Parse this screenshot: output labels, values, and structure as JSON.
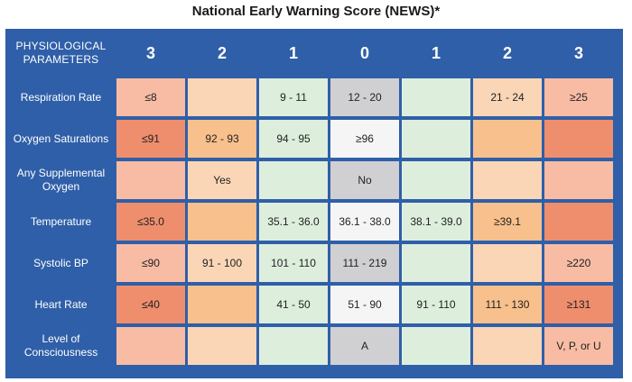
{
  "title": "National Early Warning Score (NEWS)*",
  "header": {
    "param_label": "PHYSIOLOGICAL PARAMETERS",
    "scores": [
      "3",
      "2",
      "1",
      "0",
      "1",
      "2",
      "3"
    ]
  },
  "colors": {
    "header_blue": "#2f5fa8",
    "score3_red": "#ef8e6d",
    "score3_salmon": "#f8bca4",
    "score2_peach": "#fad6b7",
    "score2_orange": "#f8c08c",
    "score1_green": "#ddeedd",
    "score0_grey": "#d0d0d3",
    "score0_white": "#f5f5f5"
  },
  "rows": [
    {
      "label": "Respiration Rate",
      "cells": [
        "≤8",
        "",
        "9 - 11",
        "12 - 20",
        "",
        "21 - 24",
        "≥25"
      ]
    },
    {
      "label": "Oxygen Saturations",
      "cells": [
        "≤91",
        "92 - 93",
        "94 - 95",
        "≥96",
        "",
        "",
        ""
      ]
    },
    {
      "label": "Any Supplemental Oxygen",
      "cells": [
        "",
        "Yes",
        "",
        "No",
        "",
        "",
        ""
      ]
    },
    {
      "label": "Temperature",
      "cells": [
        "≤35.0",
        "",
        "35.1 - 36.0",
        "36.1 - 38.0",
        "38.1 - 39.0",
        "≥39.1",
        ""
      ]
    },
    {
      "label": "Systolic BP",
      "cells": [
        "≤90",
        "91 - 100",
        "101 - 110",
        "111 - 219",
        "",
        "",
        "≥220"
      ]
    },
    {
      "label": "Heart Rate",
      "cells": [
        "≤40",
        "",
        "41 - 50",
        "51 - 90",
        "91 - 110",
        "111 - 130",
        "≥131"
      ]
    },
    {
      "label": "Level of Consciousness",
      "cells": [
        "",
        "",
        "",
        "A",
        "",
        "",
        "V, P, or U"
      ]
    }
  ]
}
